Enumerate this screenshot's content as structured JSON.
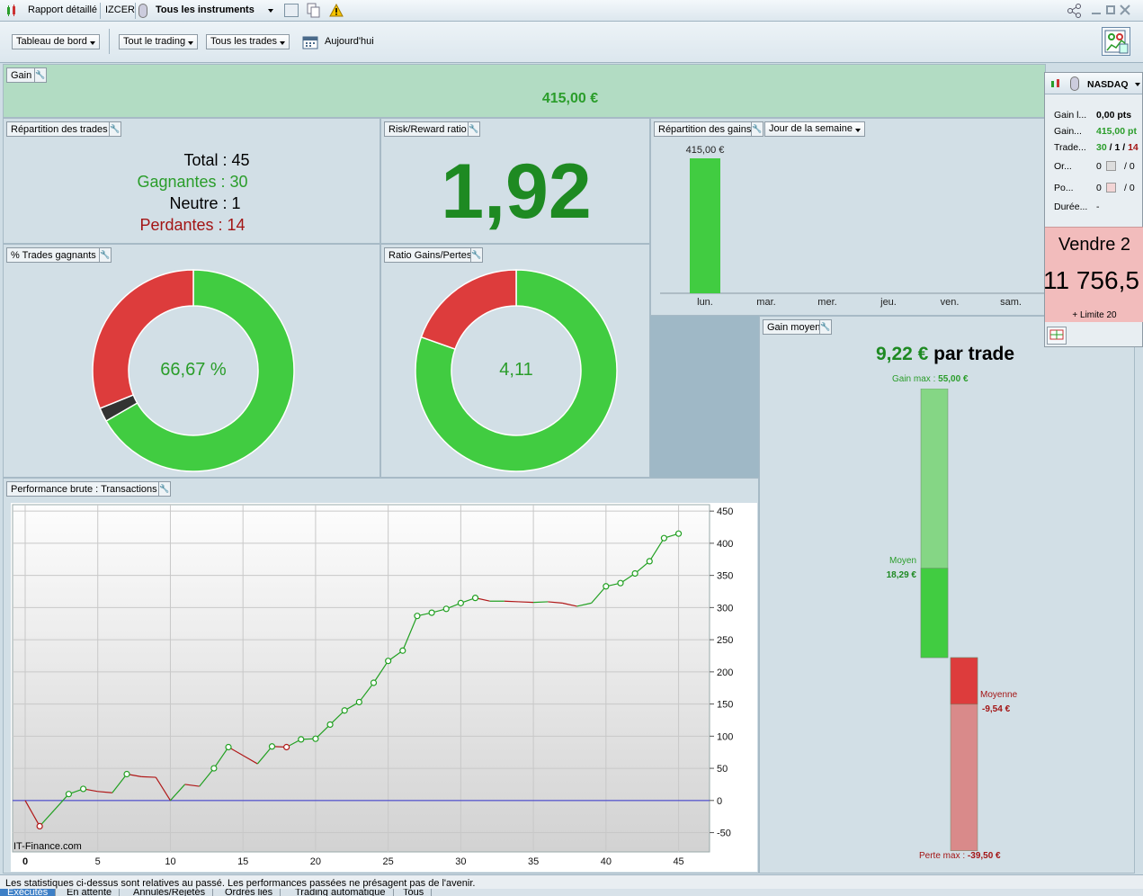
{
  "titlebar": {
    "report": "Rapport détaillé",
    "account": "IZCER",
    "instruments": "Tous les instruments"
  },
  "toolbar": {
    "dashboard": "Tableau de bord",
    "trading": "Tout le trading",
    "trades": "Tous les trades",
    "today": "Aujourd'hui"
  },
  "gain": {
    "label": "Gain",
    "value": "415,00 €"
  },
  "repartition": {
    "label": "Répartition des trades",
    "total": "Total : 45",
    "gagnantes": "Gagnantes : 30",
    "neutre": "Neutre : 1",
    "perdantes": "Perdantes : 14"
  },
  "risk": {
    "label": "Risk/Reward ratio",
    "value": "1,92"
  },
  "pct_winning": {
    "label": "% Trades gagnants",
    "center": "66,67 %",
    "slices": [
      {
        "name": "gagnants",
        "value": 30,
        "color": "#41cc41"
      },
      {
        "name": "neutre",
        "value": 1,
        "color": "#333333"
      },
      {
        "name": "perdants",
        "value": 14,
        "color": "#dd3c3c"
      }
    ]
  },
  "ratio_gp": {
    "label": "Ratio Gains/Pertes",
    "center": "4,11",
    "slices": [
      {
        "name": "gains",
        "value": 80.4,
        "color": "#41cc41"
      },
      {
        "name": "pertes",
        "value": 19.6,
        "color": "#dd3c3c"
      }
    ]
  },
  "repartition_gains": {
    "label": "Répartition des gains",
    "selector": "Jour de la semaine",
    "chart_data": {
      "type": "bar",
      "categories": [
        "lun.",
        "mar.",
        "mer.",
        "jeu.",
        "ven.",
        "sam."
      ],
      "values": [
        415,
        0,
        0,
        0,
        0,
        0
      ],
      "data_labels": [
        "415,00 €",
        "",
        "",
        "",
        "",
        ""
      ]
    }
  },
  "gain_moyen": {
    "label": "Gain moyen",
    "value": "9,22 €",
    "suffix": "par trade",
    "gain_max_label": "Gain max :",
    "gain_max": "55,00 €",
    "moyen_label": "Moyen",
    "moyen": "18,29 €",
    "moyenne_label": "Moyenne",
    "moyenne": "-9,54 €",
    "perte_max_label": "Perte max :",
    "perte_max": "-39,50 €",
    "chart_data": {
      "type": "bar",
      "gain_max": 55.0,
      "gain_moyen": 18.29,
      "perte_moyenne": -9.54,
      "perte_max": -39.5
    }
  },
  "performance": {
    "label": "Performance brute : Transactions",
    "watermark": "IT-Finance.com",
    "chart_data": {
      "type": "line",
      "x": [
        0,
        1,
        2,
        3,
        4,
        5,
        6,
        7,
        8,
        9,
        10,
        11,
        12,
        13,
        14,
        15,
        16,
        17,
        18,
        19,
        20,
        21,
        22,
        23,
        24,
        25,
        26,
        27,
        28,
        29,
        30,
        31,
        32,
        33,
        34,
        35,
        36,
        37,
        38,
        39,
        40,
        41,
        42,
        43,
        44,
        45
      ],
      "y": [
        0,
        -40,
        -15,
        10,
        18,
        14,
        12,
        41,
        37,
        36,
        0,
        25,
        22,
        50,
        83,
        70,
        57,
        84,
        83,
        95,
        96,
        118,
        140,
        153,
        183,
        217,
        233,
        287,
        292,
        298,
        307,
        315,
        310,
        310,
        309,
        308,
        309,
        307,
        302,
        307,
        333,
        338,
        353,
        372,
        408,
        415
      ],
      "markers": [
        false,
        true,
        false,
        true,
        true,
        false,
        false,
        true,
        false,
        false,
        false,
        false,
        false,
        true,
        true,
        false,
        false,
        true,
        true,
        true,
        true,
        true,
        true,
        true,
        true,
        true,
        true,
        true,
        true,
        true,
        true,
        true,
        false,
        false,
        false,
        false,
        false,
        false,
        false,
        false,
        true,
        true,
        true,
        true,
        true,
        true
      ],
      "xticks": [
        0,
        5,
        10,
        15,
        20,
        25,
        30,
        35,
        40,
        45
      ],
      "yticks": [
        -50,
        0,
        50,
        100,
        150,
        200,
        250,
        300,
        350,
        400,
        450
      ],
      "xlim": [
        0,
        48
      ],
      "ylim": [
        -80,
        460
      ],
      "grid": true
    }
  },
  "side": {
    "market": "NASDAQ",
    "rows": [
      {
        "label": "Gain l...",
        "value": "0,00 pts"
      },
      {
        "label": "Gain...",
        "value": "415,00 pt"
      },
      {
        "label": "Trade...",
        "v1": "30",
        "v2": "1",
        "v3": "14"
      },
      {
        "label": "Or...",
        "value": "0",
        "value2": "/ 0"
      },
      {
        "label": "Po...",
        "value": "0",
        "value2": "/ 0"
      },
      {
        "label": "Durée...",
        "value": "-"
      }
    ],
    "vendre": "Vendre 2",
    "price": "11 756,5",
    "limite": "+ Limite 20"
  },
  "status": "Les statistiques ci-dessus sont relatives au passé. Les performances passées ne présagent pas de l'avenir.",
  "bottom_tabs": [
    "Exécutés",
    "En attente",
    "Annulés/Rejetés",
    "Ordres liés",
    "Trading automatique",
    "Tous"
  ]
}
